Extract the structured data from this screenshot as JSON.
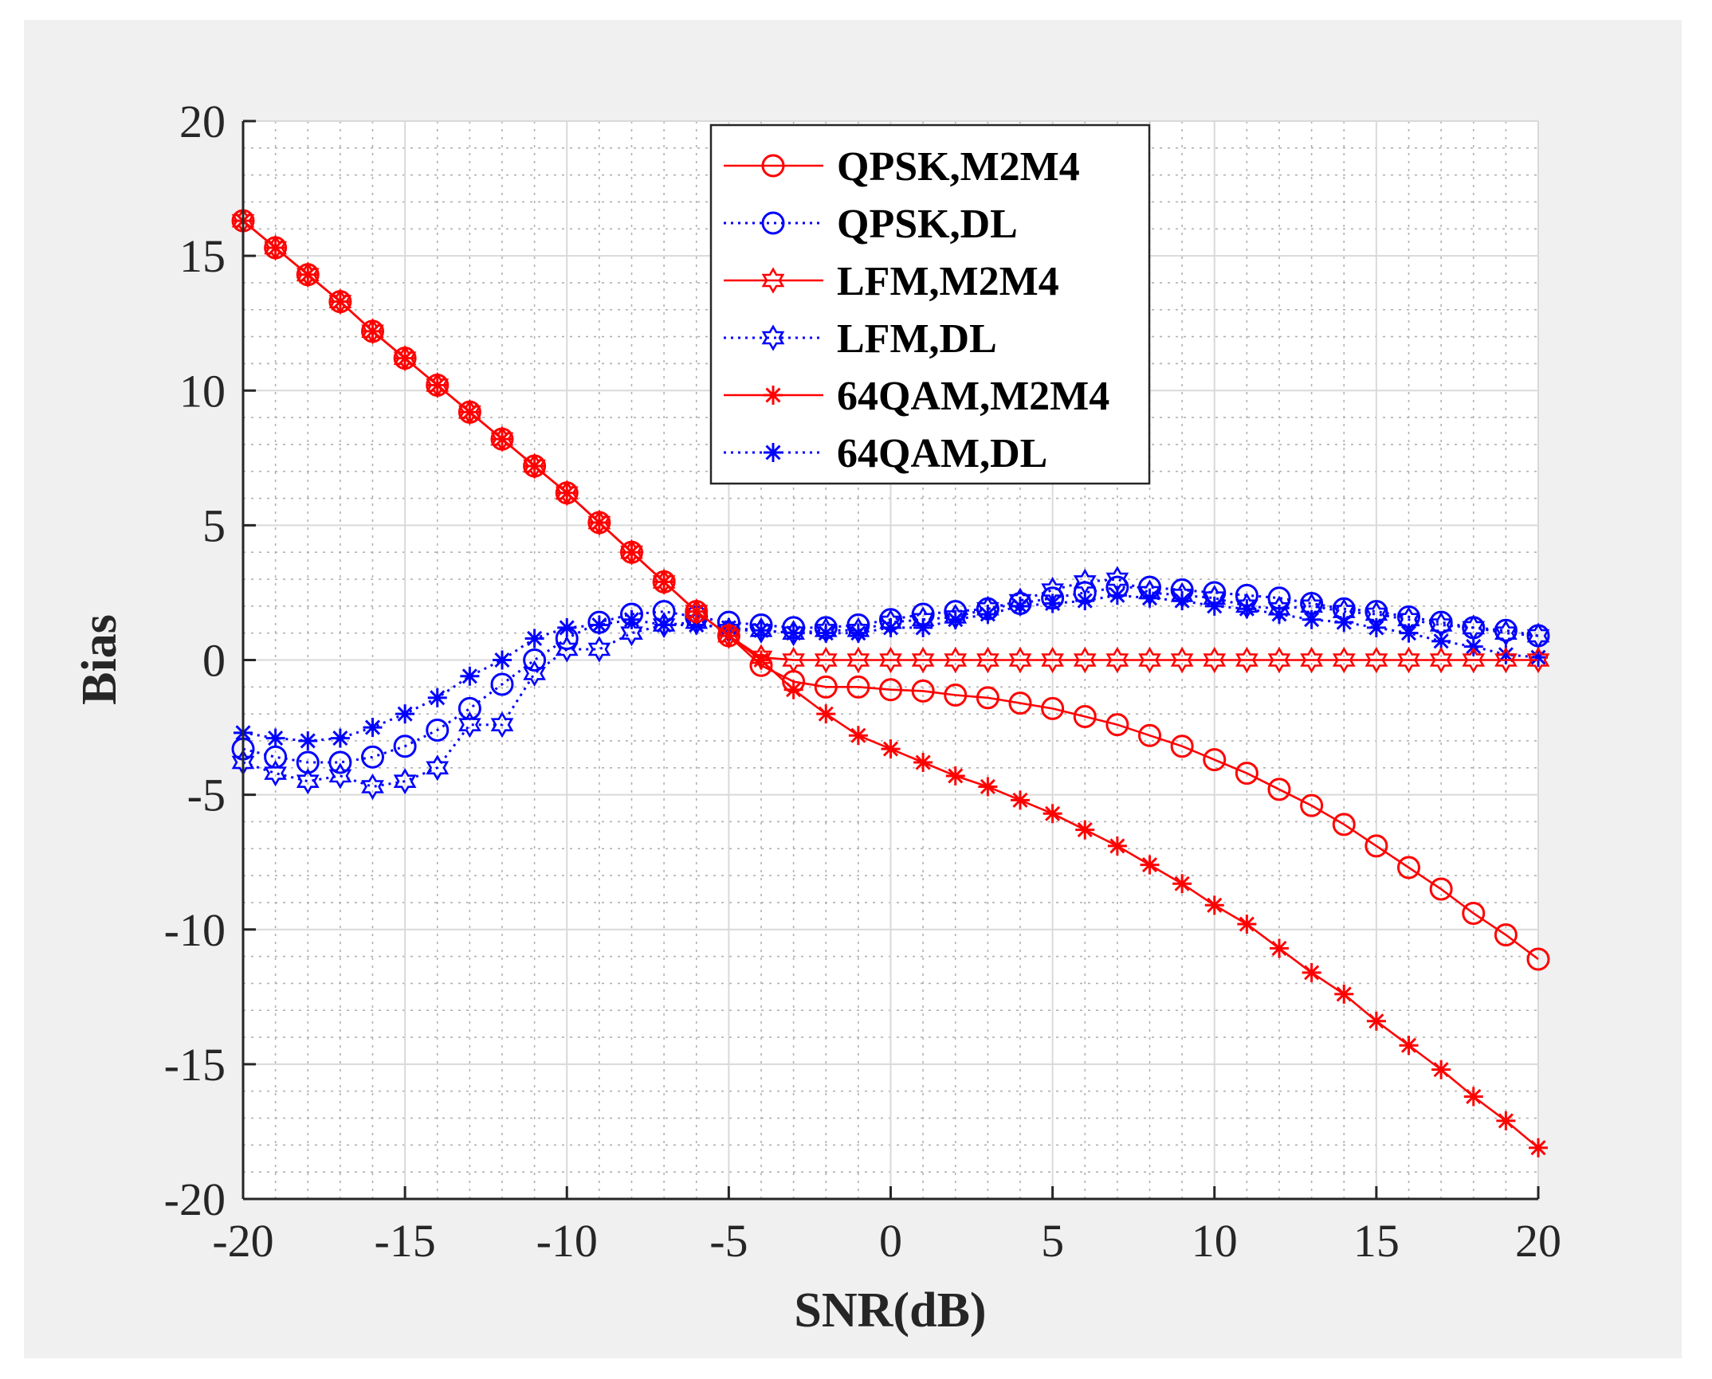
{
  "chart_data": {
    "type": "line",
    "title": "",
    "xlabel": "SNR(dB)",
    "ylabel": "Bias",
    "xlim": [
      -20,
      20
    ],
    "ylim": [
      -20,
      20
    ],
    "xticks": [
      "-20",
      "-15",
      "-10",
      "-5",
      "0",
      "5",
      "10",
      "15",
      "20"
    ],
    "yticks": [
      "20",
      "15",
      "10",
      "5",
      "0",
      "-5",
      "-10",
      "-15",
      "-20"
    ],
    "grid": true,
    "legend_position": "top-center",
    "x": [
      -20,
      -19,
      -18,
      -17,
      -16,
      -15,
      -14,
      -13,
      -12,
      -11,
      -10,
      -9,
      -8,
      -7,
      -6,
      -5,
      -4,
      -3,
      -2,
      -1,
      0,
      1,
      2,
      3,
      4,
      5,
      6,
      7,
      8,
      9,
      10,
      11,
      12,
      13,
      14,
      15,
      16,
      17,
      18,
      19,
      20
    ],
    "series": [
      {
        "name": "QPSK,M2M4",
        "color": "#ff0000",
        "line": "solid",
        "marker": "circle",
        "values": [
          16.3,
          15.3,
          14.3,
          13.3,
          12.2,
          11.2,
          10.2,
          9.2,
          8.2,
          7.2,
          6.2,
          5.1,
          4.0,
          2.9,
          1.8,
          0.9,
          -0.2,
          -0.8,
          -1.0,
          -1.0,
          -1.1,
          -1.15,
          -1.3,
          -1.4,
          -1.6,
          -1.8,
          -2.1,
          -2.4,
          -2.8,
          -3.2,
          -3.7,
          -4.2,
          -4.8,
          -5.4,
          -6.1,
          -6.9,
          -7.7,
          -8.5,
          -9.4,
          -10.2,
          -11.1
        ]
      },
      {
        "name": "QPSK,DL",
        "color": "#0000ff",
        "line": "dotted",
        "marker": "circle",
        "values": [
          -3.3,
          -3.6,
          -3.8,
          -3.8,
          -3.6,
          -3.2,
          -2.6,
          -1.8,
          -0.9,
          0.0,
          0.8,
          1.4,
          1.7,
          1.8,
          1.6,
          1.4,
          1.3,
          1.2,
          1.2,
          1.3,
          1.5,
          1.7,
          1.8,
          1.9,
          2.1,
          2.3,
          2.5,
          2.7,
          2.7,
          2.6,
          2.5,
          2.4,
          2.3,
          2.1,
          1.9,
          1.8,
          1.6,
          1.4,
          1.2,
          1.1,
          0.9
        ]
      },
      {
        "name": "LFM,M2M4",
        "color": "#ff0000",
        "line": "solid",
        "marker": "hexagram",
        "values": [
          16.3,
          15.3,
          14.3,
          13.3,
          12.2,
          11.2,
          10.2,
          9.2,
          8.2,
          7.2,
          6.2,
          5.1,
          4.0,
          2.9,
          1.8,
          0.9,
          0.1,
          0.0,
          0.0,
          0.0,
          0.0,
          0.0,
          0.0,
          0.0,
          0.0,
          0.0,
          0.0,
          0.0,
          0.0,
          0.0,
          0.0,
          0.0,
          0.0,
          0.0,
          0.0,
          0.0,
          0.0,
          0.0,
          0.0,
          0.0,
          0.0
        ]
      },
      {
        "name": "LFM,DL",
        "color": "#0000ff",
        "line": "dotted",
        "marker": "hexagram",
        "values": [
          -3.8,
          -4.2,
          -4.5,
          -4.3,
          -4.7,
          -4.5,
          -4.0,
          -2.4,
          -2.4,
          -0.5,
          0.4,
          0.4,
          1.0,
          1.3,
          1.4,
          1.1,
          1.1,
          1.0,
          1.1,
          1.1,
          1.4,
          1.5,
          1.6,
          1.9,
          2.2,
          2.6,
          2.9,
          3.0,
          2.5,
          2.4,
          2.3,
          2.0,
          1.9,
          2.0,
          1.8,
          1.7,
          1.5,
          1.3,
          1.2,
          1.0,
          0.9
        ]
      },
      {
        "name": "64QAM,M2M4",
        "color": "#ff0000",
        "line": "solid",
        "marker": "asterisk",
        "values": [
          16.3,
          15.3,
          14.3,
          13.3,
          12.2,
          11.2,
          10.2,
          9.2,
          8.2,
          7.2,
          6.2,
          5.1,
          4.0,
          2.9,
          1.8,
          0.9,
          0.0,
          -1.1,
          -2.0,
          -2.8,
          -3.3,
          -3.8,
          -4.3,
          -4.7,
          -5.2,
          -5.7,
          -6.3,
          -6.9,
          -7.6,
          -8.3,
          -9.1,
          -9.8,
          -10.7,
          -11.6,
          -12.4,
          -13.4,
          -14.3,
          -15.2,
          -16.2,
          -17.1,
          -18.1
        ]
      },
      {
        "name": "64QAM,DL",
        "color": "#0000ff",
        "line": "dotted",
        "marker": "asterisk",
        "values": [
          -2.7,
          -2.9,
          -3.0,
          -2.9,
          -2.5,
          -2.0,
          -1.4,
          -0.6,
          0.0,
          0.8,
          1.2,
          1.3,
          1.5,
          1.3,
          1.3,
          1.2,
          1.1,
          1.0,
          1.0,
          1.0,
          1.2,
          1.2,
          1.5,
          1.7,
          2.0,
          2.1,
          2.2,
          2.4,
          2.3,
          2.2,
          2.0,
          1.9,
          1.7,
          1.5,
          1.4,
          1.2,
          1.0,
          0.7,
          0.5,
          0.2,
          0.1
        ]
      }
    ]
  }
}
